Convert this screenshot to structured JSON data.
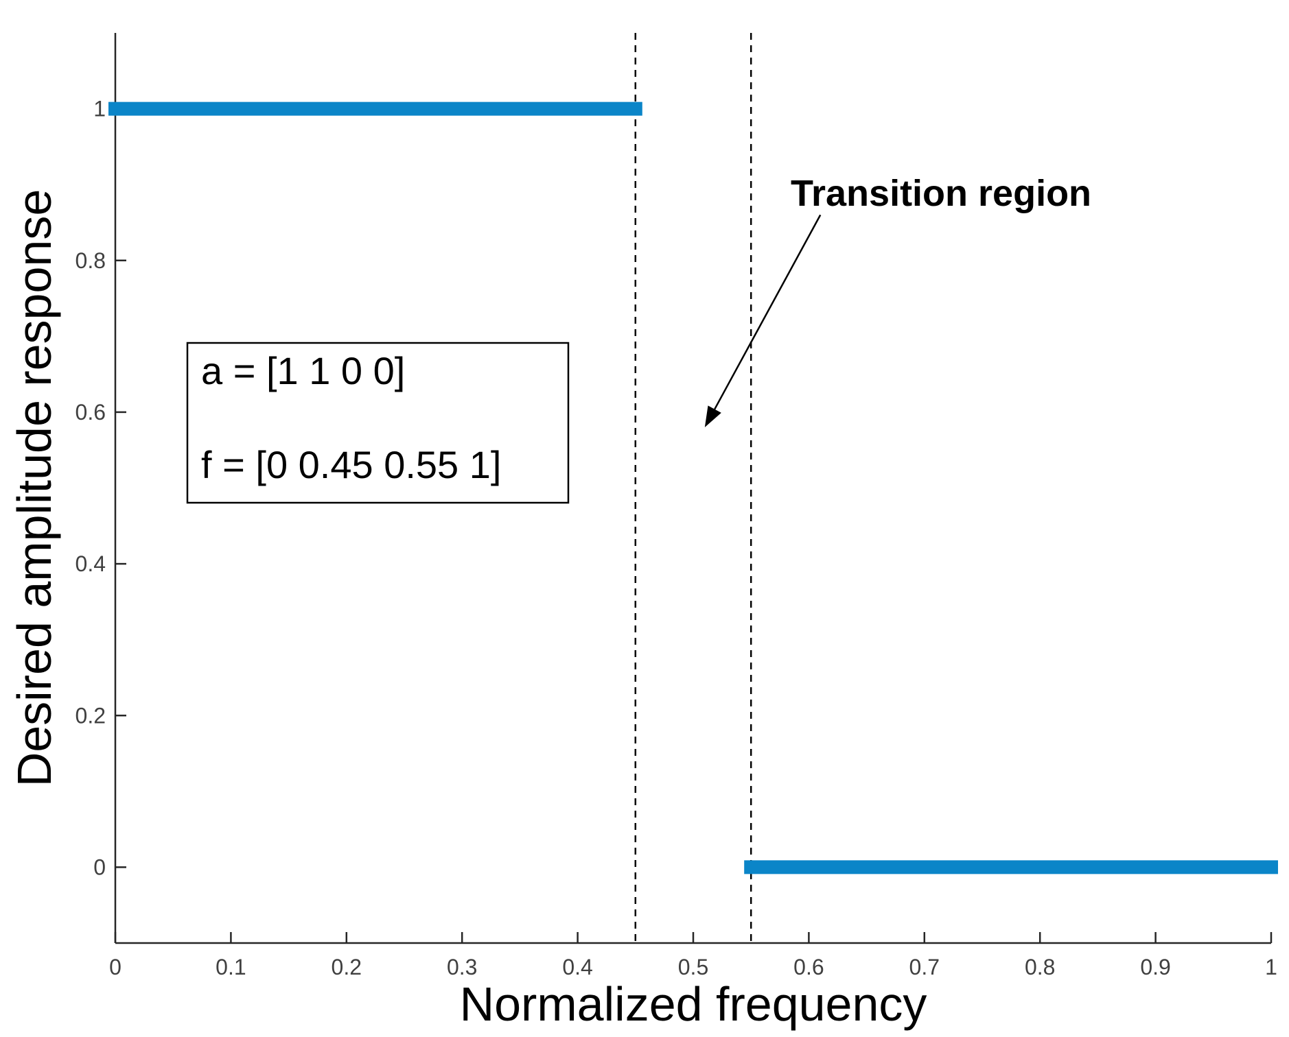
{
  "chart_data": {
    "type": "line",
    "title": "",
    "xlabel": "Normalized frequency",
    "ylabel": "Desired amplitude response",
    "xlim": [
      0,
      1
    ],
    "ylim": [
      -0.1,
      1.1
    ],
    "x_ticks": [
      0,
      0.1,
      0.2,
      0.3,
      0.4,
      0.5,
      0.6,
      0.7,
      0.8,
      0.9,
      1
    ],
    "y_ticks": [
      0,
      0.2,
      0.4,
      0.6,
      0.8,
      1
    ],
    "grid": false,
    "series": [
      {
        "segments": [
          {
            "x": [
              0,
              0.45
            ],
            "y": [
              1,
              1
            ]
          },
          {
            "x": [
              0.55,
              1
            ],
            "y": [
              0,
              0
            ]
          }
        ],
        "color": "#0b85c8"
      }
    ],
    "vlines": [
      0.45,
      0.55
    ],
    "textbox": {
      "lines": [
        "a = [1 1 0 0]",
        "f = [0 0.45 0.55 1]"
      ]
    },
    "annotation": {
      "text": "Transition region",
      "arrow_from": [
        0.61,
        0.86
      ],
      "arrow_to": [
        0.51,
        0.58
      ]
    }
  }
}
